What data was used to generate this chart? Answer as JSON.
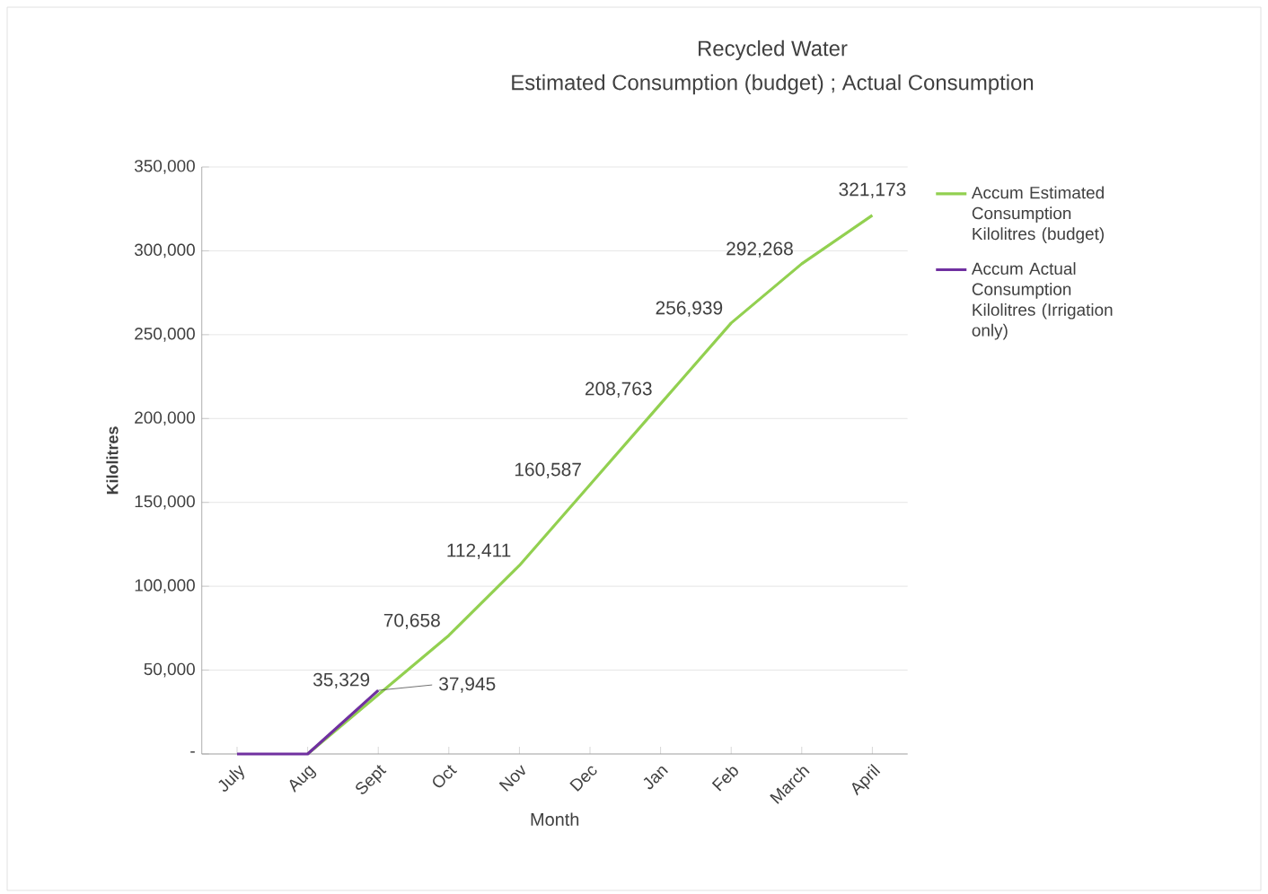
{
  "chart_data": {
    "type": "line",
    "title": "Recycled Water",
    "subtitle": "Estimated Consumption (budget) ; Actual Consumption",
    "xlabel": "Month",
    "ylabel": "Kilolitres",
    "categories": [
      "July",
      "Aug",
      "Sept",
      "Oct",
      "Nov",
      "Dec",
      "Jan",
      "Feb",
      "March",
      "April"
    ],
    "series": [
      {
        "name": "Accum Estimated Consumption Kilolitres (budget)",
        "color": "#92d050",
        "values": [
          null,
          0,
          35329,
          70658,
          112411,
          160587,
          208763,
          256939,
          292268,
          321173
        ],
        "value_labels": [
          null,
          null,
          "35,329",
          "70,658",
          "112,411",
          "160,587",
          "208,763",
          "256,939",
          "292,268",
          "321,173"
        ]
      },
      {
        "name": "Accum Actual Consumption Kilolitres (Irrigation only)",
        "color": "#7030a0",
        "values": [
          0,
          0,
          37945,
          null,
          null,
          null,
          null,
          null,
          null,
          null
        ],
        "value_labels": [
          null,
          null,
          "37,945",
          null,
          null,
          null,
          null,
          null,
          null,
          null
        ]
      }
    ],
    "ylim": [
      0,
      350000
    ],
    "yticks": [
      {
        "value": 0,
        "label": "-"
      },
      {
        "value": 50000,
        "label": "50,000"
      },
      {
        "value": 100000,
        "label": "100,000"
      },
      {
        "value": 150000,
        "label": "150,000"
      },
      {
        "value": 200000,
        "label": "200,000"
      },
      {
        "value": 250000,
        "label": "250,000"
      },
      {
        "value": 300000,
        "label": "300,000"
      },
      {
        "value": 350000,
        "label": "350,000"
      }
    ],
    "grid": "y",
    "legend": "right",
    "marker": "none",
    "line_style": "solid"
  }
}
